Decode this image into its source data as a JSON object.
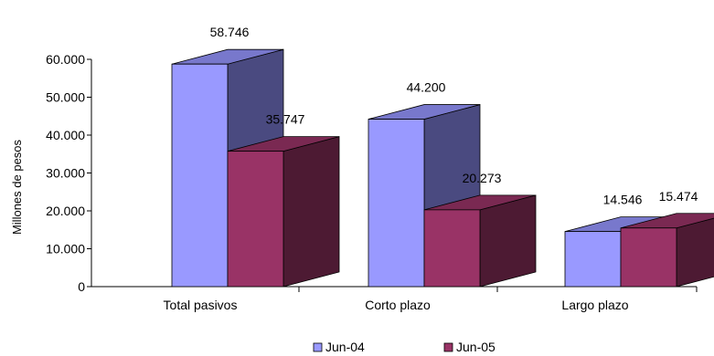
{
  "chart_data": {
    "type": "bar",
    "style": "3d-clustered",
    "title": "",
    "xlabel": "",
    "ylabel": "Millones de pesos",
    "ylim": [
      0,
      60000
    ],
    "yticks": [
      0,
      10000,
      20000,
      30000,
      40000,
      50000,
      60000
    ],
    "ytick_labels": [
      "0",
      "10.000",
      "20.000",
      "30.000",
      "40.000",
      "50.000",
      "60.000"
    ],
    "categories": [
      "Total pasivos",
      "Corto plazo",
      "Largo plazo"
    ],
    "series": [
      {
        "name": "Jun-04",
        "values": [
          58746,
          44200,
          14546
        ],
        "labels": [
          "58.746",
          "44.200",
          "14.546"
        ],
        "color_front": "#9999ff",
        "color_top": "#7878cc",
        "color_side": "#4a4a80"
      },
      {
        "name": "Jun-05",
        "values": [
          35747,
          20273,
          15474
        ],
        "labels": [
          "35.747",
          "20.273",
          "15.474"
        ],
        "color_front": "#993366",
        "color_top": "#7a2952",
        "color_side": "#4d1a33"
      }
    ],
    "grid": false,
    "legend_position": "bottom"
  }
}
